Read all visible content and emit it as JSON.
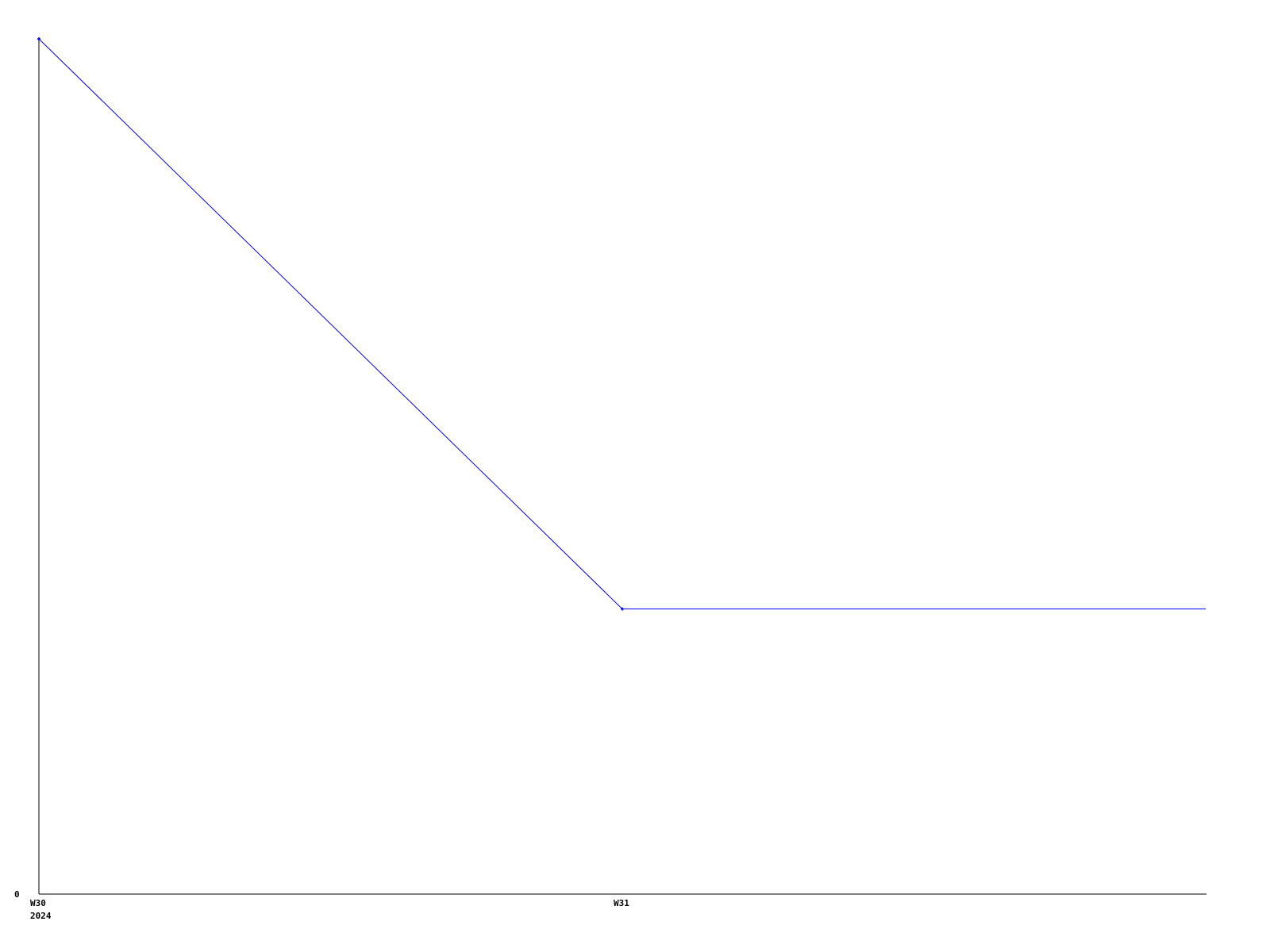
{
  "chart_data": {
    "type": "line",
    "title": "",
    "xlabel": "",
    "ylabel": "",
    "categories": [
      "W30",
      "W31"
    ],
    "x_tick_labels": [
      "W30",
      "W31"
    ],
    "x_sub_label": "2024",
    "y_tick_labels": [
      "0"
    ],
    "ylim": [
      0,
      3
    ],
    "grid": false,
    "series": [
      {
        "values": [
          3,
          1
        ],
        "color": "#0000ff",
        "extends_to_axis_end": true
      }
    ]
  }
}
